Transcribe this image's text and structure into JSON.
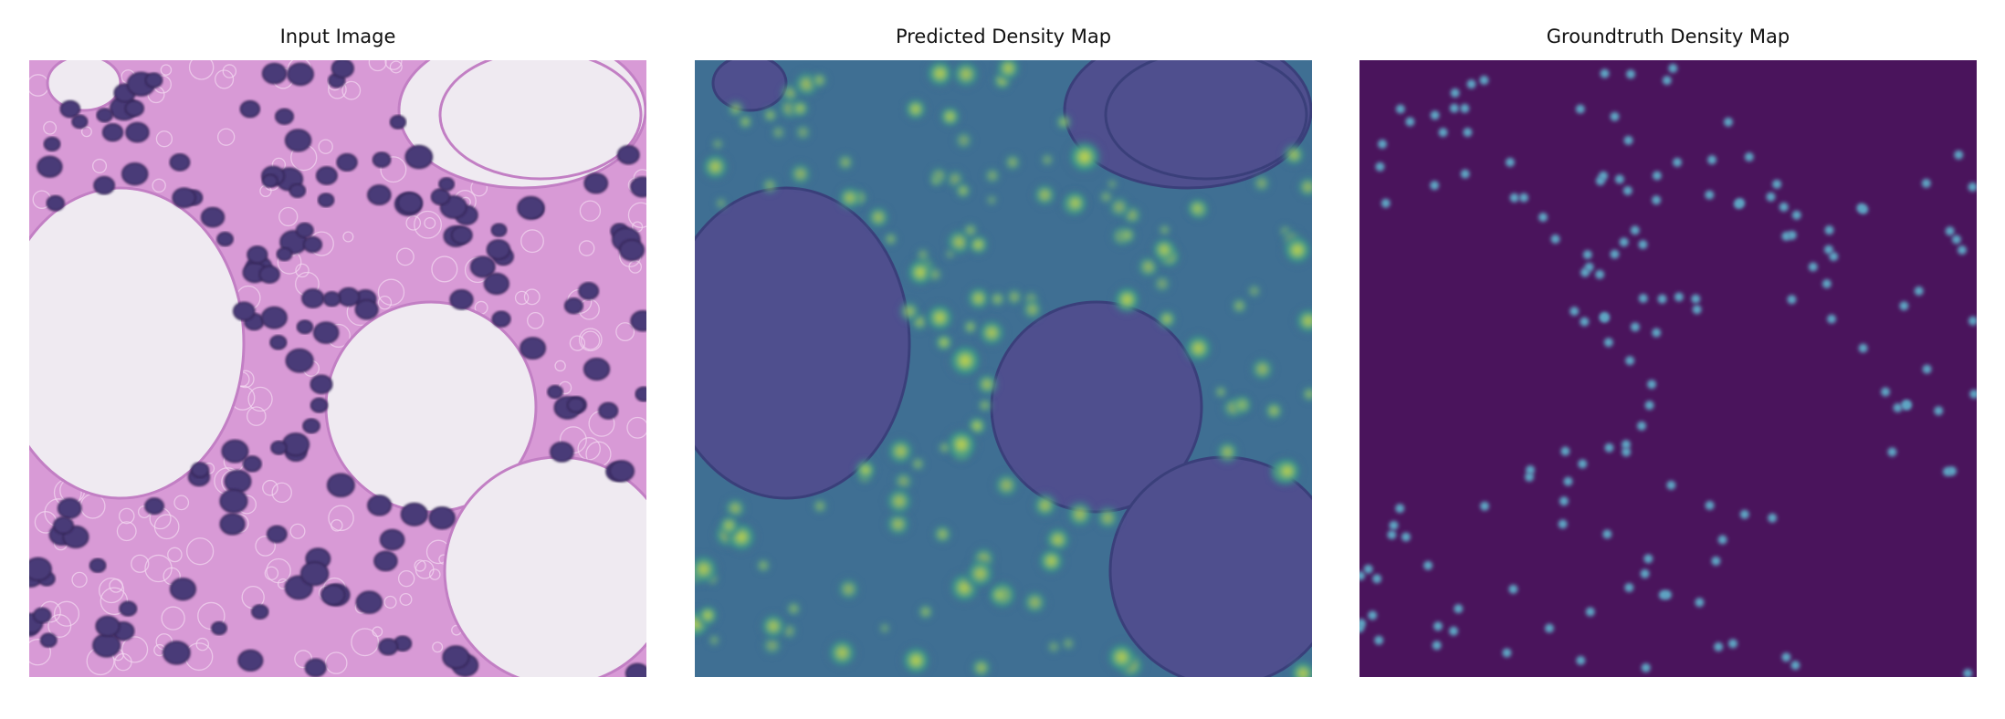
{
  "panels": [
    {
      "title": "Input Image"
    },
    {
      "title": "Predicted Density Map"
    },
    {
      "title": "Groundtruth Density Map"
    }
  ],
  "colors": {
    "tissue_background": "#d89ad6",
    "nucleus": "#4a3a78",
    "lumen": "#efeaf1",
    "predicted_background": "#4f4f8e",
    "predicted_peak_low": "#2f9a8c",
    "predicted_peak_high": "#e7e23a",
    "groundtruth_background": "#4a145c",
    "groundtruth_dot": "#5ea6c4"
  }
}
